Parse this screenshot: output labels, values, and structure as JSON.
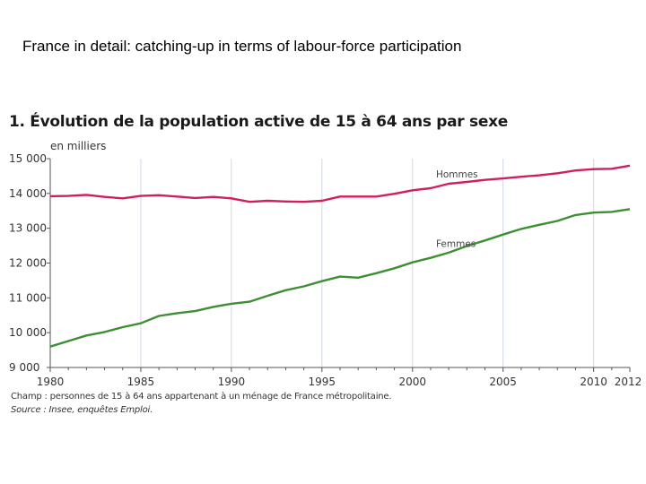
{
  "slide_title": "France in detail: catching-up in terms of labour-force participation",
  "notes": {
    "scope": "Champ : personnes de 15 à 64 ans appartenant à un ménage de France métropolitaine.",
    "source": "Source : Insee, enquêtes Emploi."
  },
  "colors": {
    "hommes": "#d11f5a",
    "femmes": "#3e8e34",
    "grid": "#cfd7e3",
    "axis": "#555555"
  },
  "chart_data": {
    "type": "line",
    "title": "1. Évolution de la population active de 15 à 64 ans par sexe",
    "ylabel": "en milliers",
    "xlim": [
      1980,
      2012
    ],
    "ylim": [
      9000,
      15000
    ],
    "x_ticks": [
      1980,
      1985,
      1990,
      1995,
      2000,
      2005,
      2010,
      2012
    ],
    "y_ticks": [
      "9 000",
      "10 000",
      "11 000",
      "12 000",
      "13 000",
      "14 000",
      "15 000"
    ],
    "y_tick_values": [
      9000,
      10000,
      11000,
      12000,
      13000,
      14000,
      15000
    ],
    "grid": "vertical",
    "x": [
      1980,
      1981,
      1982,
      1983,
      1984,
      1985,
      1986,
      1987,
      1988,
      1989,
      1990,
      1991,
      1992,
      1993,
      1994,
      1995,
      1996,
      1997,
      1998,
      1999,
      2000,
      2001,
      2002,
      2003,
      2004,
      2005,
      2006,
      2007,
      2008,
      2009,
      2010,
      2011,
      2012
    ],
    "series": [
      {
        "name": "Hommes",
        "color": "#d11f5a",
        "values": [
          13920,
          13930,
          13960,
          13900,
          13860,
          13930,
          13950,
          13910,
          13870,
          13900,
          13860,
          13760,
          13790,
          13770,
          13760,
          13790,
          13910,
          13910,
          13910,
          13990,
          14090,
          14150,
          14280,
          14330,
          14390,
          14430,
          14480,
          14520,
          14580,
          14660,
          14700,
          14710,
          14800
        ]
      },
      {
        "name": "Femmes",
        "color": "#3e8e34",
        "values": [
          9600,
          9760,
          9920,
          10020,
          10160,
          10270,
          10480,
          10560,
          10620,
          10740,
          10830,
          10890,
          11060,
          11220,
          11330,
          11480,
          11610,
          11580,
          11710,
          11850,
          12020,
          12150,
          12300,
          12490,
          12650,
          12820,
          12980,
          13100,
          13210,
          13380,
          13450,
          13470,
          13550
        ]
      }
    ]
  }
}
